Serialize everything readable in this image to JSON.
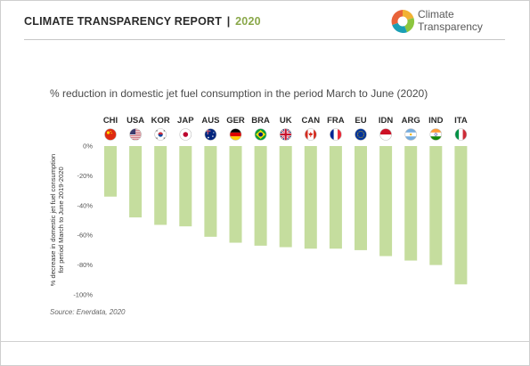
{
  "header": {
    "report_title": "CLIMATE TRANSPARENCY REPORT",
    "separator": "|",
    "report_year": "2020",
    "logo_line1": "Climate",
    "logo_line2": "Transparency",
    "logo_colors": [
      "#f2b233",
      "#8cc63f",
      "#1a9fb5",
      "#e8633a"
    ]
  },
  "footer": {
    "source": "Source: Enerdata, 2020"
  },
  "chart_data": {
    "type": "bar",
    "title": "% reduction in domestic jet fuel consumption in the period March to June (2020)",
    "ylabel_lines": [
      "% decrease in domestic jet fuel consumption",
      "for period March to June 2019-2020"
    ],
    "categories": [
      "CHI",
      "USA",
      "KOR",
      "JAP",
      "AUS",
      "GER",
      "BRA",
      "UK",
      "CAN",
      "FRA",
      "EU",
      "IDN",
      "ARG",
      "IND",
      "ITA"
    ],
    "values": [
      -34,
      -48,
      -53,
      -54,
      -61,
      -65,
      -67,
      -68,
      -69,
      -69,
      -70,
      -74,
      -77,
      -80,
      -93
    ],
    "ylim": [
      -100,
      0
    ],
    "yticks": [
      0,
      -20,
      -40,
      -60,
      -80,
      -100
    ],
    "ytick_labels": [
      "0%",
      "-20%",
      "-40%",
      "-60%",
      "-80%",
      "-100%"
    ],
    "bar_color": "#c5dd9e",
    "grid": false,
    "flag_icons": [
      "china-flag-icon",
      "usa-flag-icon",
      "korea-flag-icon",
      "japan-flag-icon",
      "australia-flag-icon",
      "germany-flag-icon",
      "brazil-flag-icon",
      "uk-flag-icon",
      "canada-flag-icon",
      "france-flag-icon",
      "eu-flag-icon",
      "indonesia-flag-icon",
      "argentina-flag-icon",
      "india-flag-icon",
      "italy-flag-icon"
    ]
  }
}
